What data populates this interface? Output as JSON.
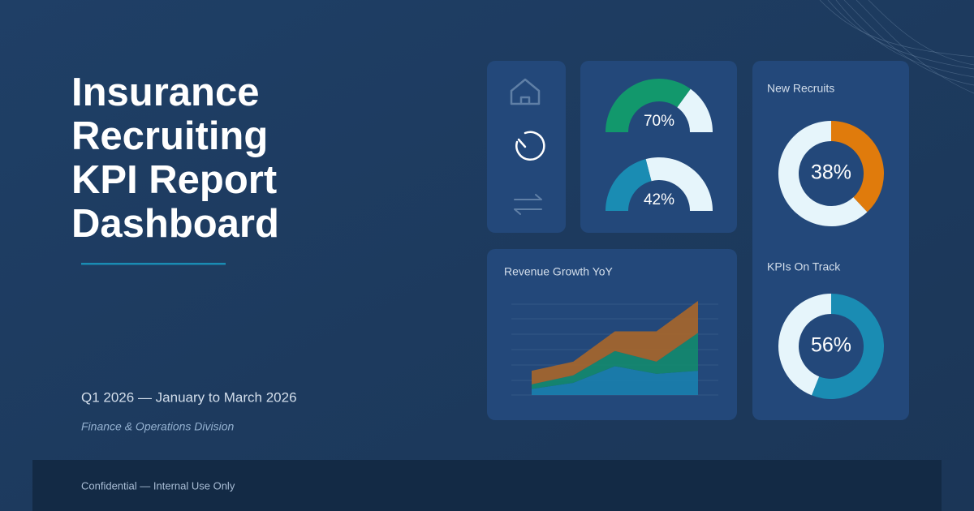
{
  "header": {
    "title_lines": [
      "Insurance",
      "Recruiting",
      "KPI Report",
      "Dashboard"
    ],
    "period": "Q1 2026 — January to March 2026",
    "division": "Finance & Operations Division"
  },
  "gauges": [
    {
      "value": 70,
      "value_label": "70%",
      "color": "#12986c"
    },
    {
      "value": 42,
      "value_label": "42%",
      "color": "#1a8cb3"
    }
  ],
  "donuts": [
    {
      "title": "New Recruits",
      "value": 38,
      "value_label": "38%",
      "color": "#e07b0c"
    },
    {
      "title": "KPIs On Track",
      "value": 56,
      "value_label": "56%",
      "color": "#1a8cb3"
    }
  ],
  "chart_data": {
    "type": "area",
    "title": "Revenue Growth YoY",
    "stacked": true,
    "categories": [
      null,
      null,
      null,
      null,
      null
    ],
    "ylim": [
      0,
      6.5
    ],
    "series": [
      {
        "color": "#1a7fae",
        "values": [
          0.4,
          0.8,
          1.9,
          1.4,
          1.6
        ]
      },
      {
        "color": "#138a6e",
        "values": [
          0.3,
          0.5,
          1.0,
          0.8,
          2.5
        ]
      },
      {
        "color": "#a8662a",
        "values": [
          0.9,
          0.9,
          1.3,
          2.0,
          2.1
        ]
      }
    ]
  },
  "footer": {
    "text": "Confidential — Internal Use Only"
  }
}
